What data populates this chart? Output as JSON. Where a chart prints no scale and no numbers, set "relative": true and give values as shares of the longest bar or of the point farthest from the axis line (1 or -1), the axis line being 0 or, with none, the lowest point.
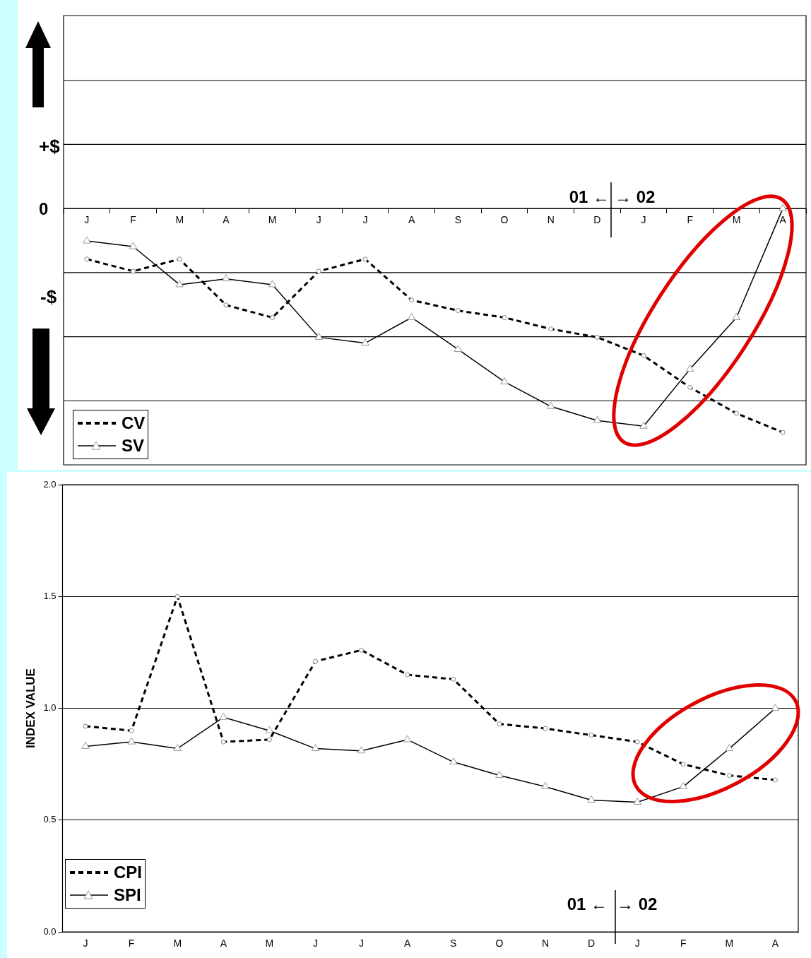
{
  "chart_data": [
    {
      "type": "line",
      "relative": true,
      "grid": true,
      "legend": "bottom left",
      "categories": [
        "J",
        "F",
        "M",
        "A",
        "M",
        "J",
        "J",
        "A",
        "S",
        "O",
        "N",
        "D",
        "J",
        "F",
        "M",
        "A"
      ],
      "annotations": [
        "+$",
        "0",
        "-$",
        "01 ←",
        "→ 02"
      ],
      "series": [
        {
          "name": "CV",
          "color": "#000000",
          "line_style": "dashed",
          "marker": "circle",
          "values": [
            -0.226,
            -0.28,
            -0.226,
            -0.431,
            -0.487,
            -0.28,
            -0.226,
            -0.409,
            -0.456,
            -0.487,
            -0.538,
            -0.575,
            -0.657,
            -0.799,
            -0.915,
            -1
          ]
        },
        {
          "name": "SV",
          "color": "#000000",
          "line_style": "solid",
          "marker": "triangle",
          "values": [
            -0.145,
            -0.17,
            -0.34,
            -0.314,
            -0.34,
            -0.575,
            -0.601,
            -0.487,
            -0.629,
            -0.774,
            -0.884,
            -0.947,
            -0.972,
            -0.717,
            -0.487,
            0
          ]
        }
      ]
    },
    {
      "type": "line",
      "grid": "y",
      "legend": "bottom left",
      "ylabel": "INDEX VALUE",
      "categories": [
        "J",
        "F",
        "M",
        "A",
        "M",
        "J",
        "J",
        "A",
        "S",
        "O",
        "N",
        "D",
        "J",
        "F",
        "M",
        "A"
      ],
      "ylim": [
        0,
        2
      ],
      "yticks": [
        {
          "value": 0,
          "label": "0.0"
        },
        {
          "value": 0.5,
          "label": "0.5"
        },
        {
          "value": 1,
          "label": "1.0"
        },
        {
          "value": 1.5,
          "label": "1.5"
        },
        {
          "value": 2,
          "label": "2.0"
        }
      ],
      "annotations": [
        "01 ←",
        "→ 02"
      ],
      "series": [
        {
          "name": "CPI",
          "color": "#000000",
          "line_style": "dashed",
          "marker": "circle",
          "values": [
            0.92,
            0.9,
            1.5,
            0.85,
            0.86,
            1.21,
            1.26,
            1.15,
            1.13,
            0.93,
            0.91,
            0.88,
            0.85,
            0.75,
            0.7,
            0.68
          ]
        },
        {
          "name": "SPI",
          "color": "#000000",
          "line_style": "solid",
          "marker": "triangle",
          "values": [
            0.83,
            0.85,
            0.82,
            0.96,
            0.9,
            0.82,
            0.81,
            0.86,
            0.76,
            0.7,
            0.65,
            0.59,
            0.58,
            0.65,
            0.82,
            1.0
          ]
        }
      ]
    }
  ]
}
